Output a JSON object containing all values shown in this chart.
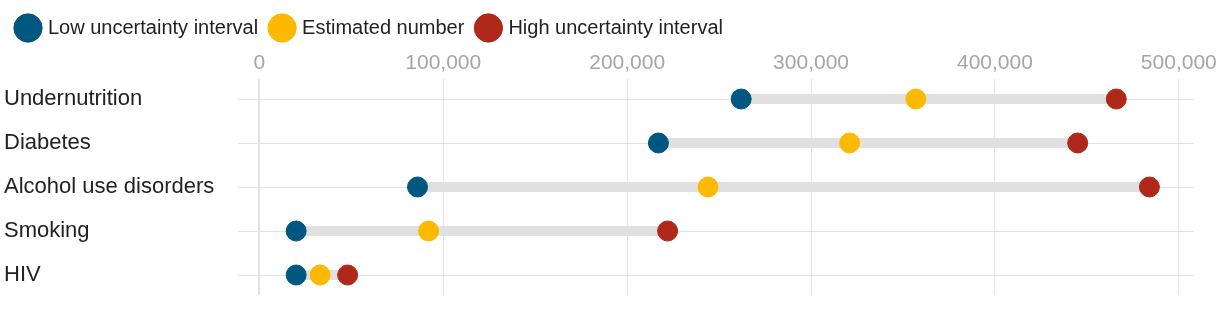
{
  "chart_data": {
    "type": "scatter",
    "orientation": "horizontal",
    "categories": [
      "Undernutrition",
      "Diabetes",
      "Alcohol use disorders",
      "Smoking",
      "HIV"
    ],
    "series": [
      {
        "name": "Low uncertainty interval",
        "color": "#00577f",
        "values": [
          262000,
          217000,
          86000,
          20000,
          20000
        ]
      },
      {
        "name": "Estimated number",
        "color": "#fdb900",
        "values": [
          357000,
          321000,
          244000,
          92000,
          33000
        ]
      },
      {
        "name": "High uncertainty interval",
        "color": "#b0281a",
        "values": [
          466000,
          445000,
          484000,
          222000,
          48000
        ]
      }
    ],
    "xlim": [
      -6000,
      508000
    ],
    "xticks": [
      {
        "value": 0,
        "label": "0"
      },
      {
        "value": 100000,
        "label": "100,000"
      },
      {
        "value": 200000,
        "label": "200,000"
      },
      {
        "value": 300000,
        "label": "300,000"
      },
      {
        "value": 400000,
        "label": "400,000"
      },
      {
        "value": 500000,
        "label": "500,000"
      }
    ],
    "grid": true,
    "legend": "top left",
    "marker": "circle"
  }
}
